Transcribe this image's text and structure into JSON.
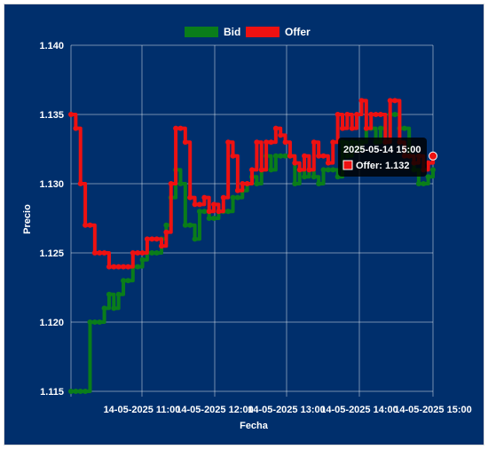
{
  "chart_data": {
    "type": "line",
    "xlabel": "Fecha",
    "ylabel": "Precio",
    "ylim": [
      1.115,
      1.14
    ],
    "yticks": [
      "1.115",
      "1.120",
      "1.125",
      "1.130",
      "1.135",
      "1.140"
    ],
    "xticks": [
      "14-05-2025 11:00",
      "14-05-2025 12:00",
      "14-05-2025 13:00",
      "14-05-2025 14:00",
      "14-05-2025 15:00"
    ],
    "grid": true,
    "legend_position": "top",
    "series": [
      {
        "name": "Bid",
        "color": "#0a7d1a",
        "values": [
          1.115,
          1.115,
          1.115,
          1.115,
          1.12,
          1.12,
          1.12,
          1.121,
          1.122,
          1.121,
          1.122,
          1.123,
          1.123,
          1.124,
          1.124,
          1.1245,
          1.125,
          1.125,
          1.125,
          1.126,
          1.127,
          1.129,
          1.131,
          1.13,
          1.127,
          1.127,
          1.126,
          1.128,
          1.128,
          1.1275,
          1.1275,
          1.128,
          1.128,
          1.128,
          1.129,
          1.129,
          1.1295,
          1.13,
          1.1305,
          1.13,
          1.131,
          1.132,
          1.131,
          1.132,
          1.132,
          1.132,
          1.132,
          1.13,
          1.131,
          1.1305,
          1.131,
          1.1305,
          1.13,
          1.131,
          1.131,
          1.131,
          1.1305,
          1.133,
          1.132,
          1.133,
          1.1325,
          1.133,
          1.134,
          1.134,
          1.133,
          1.134,
          1.133,
          1.135,
          1.135,
          1.134,
          1.134,
          1.132,
          1.131,
          1.13,
          1.13,
          1.1305,
          1.131
        ]
      },
      {
        "name": "Offer",
        "color": "#ee1111",
        "values": [
          1.135,
          1.134,
          1.13,
          1.127,
          1.127,
          1.125,
          1.125,
          1.125,
          1.124,
          1.124,
          1.124,
          1.124,
          1.124,
          1.125,
          1.125,
          1.125,
          1.126,
          1.126,
          1.126,
          1.1255,
          1.1265,
          1.13,
          1.134,
          1.134,
          1.133,
          1.129,
          1.1285,
          1.1285,
          1.129,
          1.128,
          1.1285,
          1.128,
          1.129,
          1.133,
          1.132,
          1.1295,
          1.13,
          1.13,
          1.131,
          1.133,
          1.131,
          1.133,
          1.133,
          1.134,
          1.1335,
          1.133,
          1.132,
          1.1315,
          1.131,
          1.132,
          1.131,
          1.133,
          1.132,
          1.132,
          1.1315,
          1.133,
          1.135,
          1.134,
          1.135,
          1.134,
          1.135,
          1.136,
          1.134,
          1.135,
          1.135,
          1.135,
          1.133,
          1.136,
          1.136,
          1.133,
          1.132,
          1.132,
          1.1315,
          1.132,
          1.131,
          1.1315,
          1.132
        ]
      }
    ],
    "tooltip": {
      "title": "2025-05-14 15:00",
      "series": "Offer",
      "label": "Offer: 1.132",
      "point_index": 76
    }
  }
}
